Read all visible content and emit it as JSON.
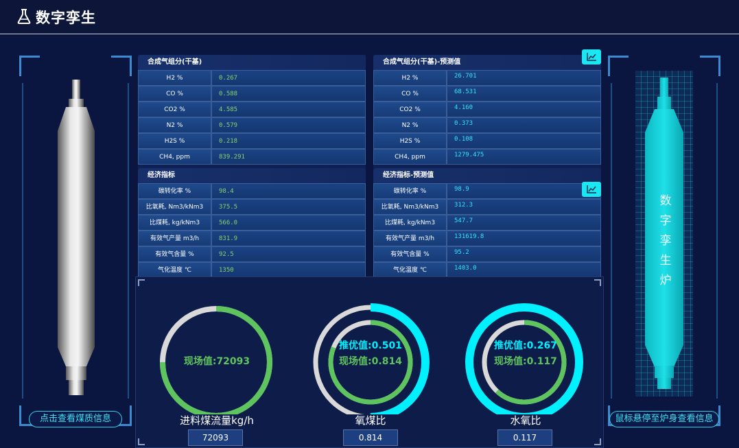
{
  "header": {
    "title": "数字孪生"
  },
  "left_panel": {
    "button_label": "点击查看煤质信息"
  },
  "right_panel": {
    "furnace_label": [
      "数",
      "字",
      "孪",
      "生",
      "炉"
    ],
    "button_label": "鼠标悬停至炉身查看信息"
  },
  "composition_actual": {
    "title": "合成气组分(干基)",
    "rows": [
      {
        "label": "H2 %",
        "value": "0.267"
      },
      {
        "label": "CO %",
        "value": "0.588"
      },
      {
        "label": "CO2 %",
        "value": "4.585"
      },
      {
        "label": "N2 %",
        "value": "0.579"
      },
      {
        "label": "H2S %",
        "value": "0.218"
      },
      {
        "label": "CH4, ppm",
        "value": "839.291"
      }
    ]
  },
  "composition_predicted": {
    "title": "合成气组分(干基)-预测值",
    "rows": [
      {
        "label": "H2 %",
        "value": "26.701"
      },
      {
        "label": "CO %",
        "value": "68.531"
      },
      {
        "label": "CO2 %",
        "value": "4.160"
      },
      {
        "label": "N2 %",
        "value": "0.373"
      },
      {
        "label": "H2S %",
        "value": "0.108"
      },
      {
        "label": "CH4, ppm",
        "value": "1279.475"
      }
    ]
  },
  "economic_actual": {
    "title": "经济指标",
    "rows": [
      {
        "label": "碳转化率 %",
        "value": "98.4"
      },
      {
        "label": "比氧耗, Nm3/kNm3",
        "value": "375.5"
      },
      {
        "label": "比煤耗, kg/kNm3",
        "value": "566.0"
      },
      {
        "label": "有效气产量 m3/h",
        "value": "831.9"
      },
      {
        "label": "有效气含量 %",
        "value": "92.5"
      },
      {
        "label": "气化温度 ℃",
        "value": "1350"
      }
    ]
  },
  "economic_predicted": {
    "title": "经济指标-预测值",
    "rows": [
      {
        "label": "碳转化率 %",
        "value": "98.9"
      },
      {
        "label": "比氧耗, Nm3/kNm3",
        "value": "312.3"
      },
      {
        "label": "比煤耗, kg/kNm3",
        "value": "547.7"
      },
      {
        "label": "有效气产量 m3/h",
        "value": "131619.8"
      },
      {
        "label": "有效气含量 %",
        "value": "95.2"
      },
      {
        "label": "气化温度 ℃",
        "value": "1403.0"
      }
    ]
  },
  "gauges": [
    {
      "name": "进料煤流量kg/h",
      "value_box": "72093",
      "lines": [
        "现场值:72093"
      ],
      "outer_fraction": null,
      "inner_fraction": 0.75
    },
    {
      "name": "氧煤比",
      "value_box": "0.814",
      "lines": [
        "推优值:0.501",
        "现场值:0.814"
      ],
      "outer_fraction": 0.5,
      "inner_fraction": 0.81
    },
    {
      "name": "水氧比",
      "value_box": "0.117",
      "lines": [
        "推优值:0.267",
        "现场值:0.117"
      ],
      "outer_fraction": 1.0,
      "inner_fraction": 0.62
    }
  ],
  "colors": {
    "accent_cyan": "#00f0ff",
    "value_green": "#5ec45e",
    "track_grey": "#d9d9d9"
  }
}
